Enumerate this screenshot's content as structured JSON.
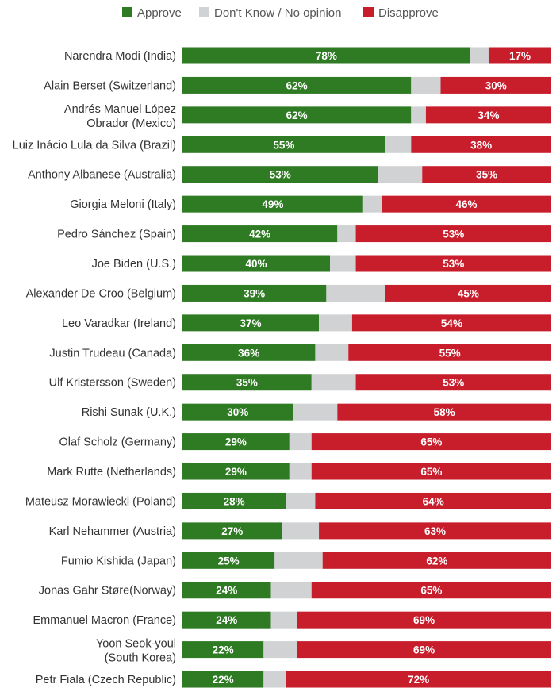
{
  "chart_data": {
    "type": "bar",
    "orientation": "horizontal",
    "stacked": true,
    "grid": false,
    "legend_position": "top",
    "title": "",
    "xlabel": "",
    "ylabel": "",
    "xlim": [
      0,
      100
    ],
    "categories": [
      "Narendra Modi (India)",
      "Alain Berset (Switzerland)",
      "Andrés Manuel López|Obrador (Mexico)",
      "Luiz Inácio Lula da Silva (Brazil)",
      "Anthony Albanese (Australia)",
      "Giorgia Meloni (Italy)",
      "Pedro Sánchez (Spain)",
      "Joe Biden (U.S.)",
      "Alexander De Croo (Belgium)",
      "Leo Varadkar (Ireland)",
      "Justin Trudeau (Canada)",
      "Ulf Kristersson (Sweden)",
      "Rishi Sunak (U.K.)",
      "Olaf Scholz (Germany)",
      "Mark Rutte (Netherlands)",
      "Mateusz Morawiecki (Poland)",
      "Karl Nehammer (Austria)",
      "Fumio Kishida (Japan)",
      "Jonas Gahr Støre(Norway)",
      "Emmanuel Macron (France)",
      "Yoon Seok-youl|(South Korea)",
      "Petr Fiala (Czech Republic)"
    ],
    "series": [
      {
        "name": "Approve",
        "color": "#2e7b23",
        "labeled": true,
        "values": [
          78,
          62,
          62,
          55,
          53,
          49,
          42,
          40,
          39,
          37,
          36,
          35,
          30,
          29,
          29,
          28,
          27,
          25,
          24,
          24,
          22,
          22
        ]
      },
      {
        "name": "Don't Know / No opinion",
        "color": "#d0d2d3",
        "labeled": false,
        "values": [
          5,
          8,
          4,
          7,
          12,
          5,
          5,
          7,
          16,
          9,
          9,
          12,
          12,
          6,
          6,
          8,
          10,
          13,
          11,
          7,
          9,
          6
        ]
      },
      {
        "name": "Disapprove",
        "color": "#c81e2c",
        "labeled": true,
        "values": [
          17,
          30,
          34,
          38,
          35,
          46,
          53,
          53,
          45,
          54,
          55,
          53,
          58,
          65,
          65,
          64,
          63,
          62,
          65,
          69,
          69,
          72
        ]
      }
    ],
    "value_suffix": "%"
  }
}
